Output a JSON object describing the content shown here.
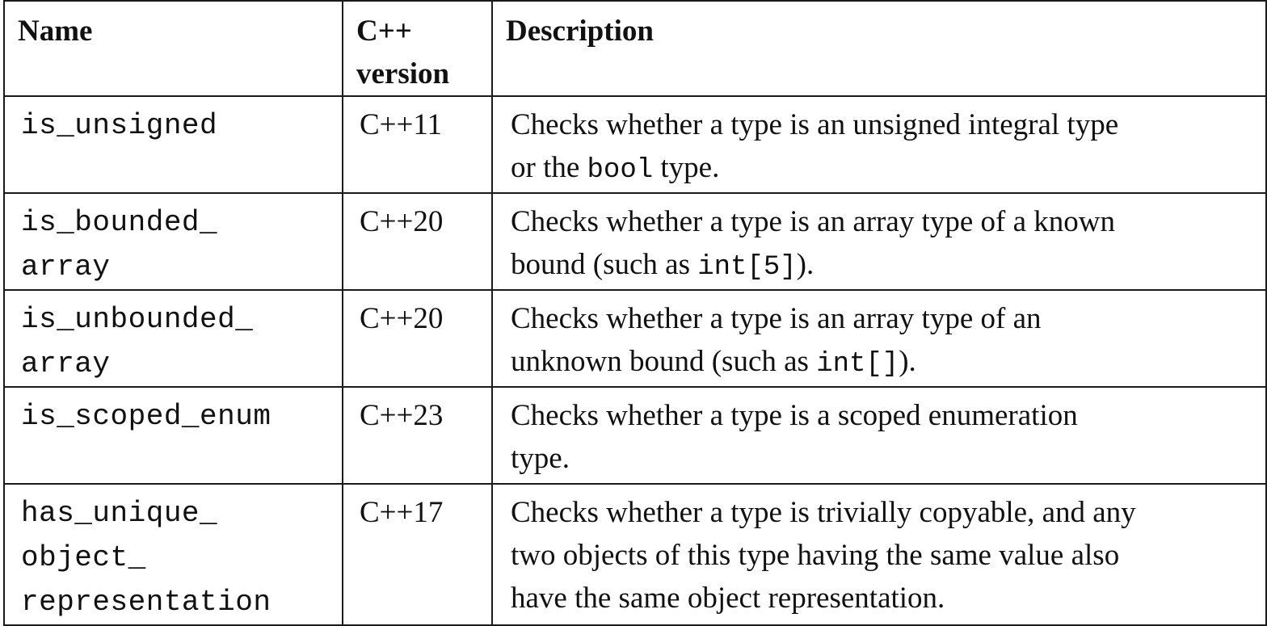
{
  "table": {
    "headers": {
      "name": "Name",
      "version": "C++\nversion",
      "description": "Description"
    },
    "rows": [
      {
        "name": "is_unsigned",
        "version": "C++11",
        "desc_before": "Checks whether a type is an unsigned integral type\nor the ",
        "desc_code": "bool",
        "desc_after": " type."
      },
      {
        "name": "is_bounded_\narray",
        "version": "C++20",
        "desc_before": "Checks whether a type is an array type of a known\nbound (such as ",
        "desc_code": "int[5]",
        "desc_after": ")."
      },
      {
        "name": "is_unbounded_\narray",
        "version": "C++20",
        "desc_before": "Checks whether a type is an array type of an\nunknown bound (such as ",
        "desc_code": "int[]",
        "desc_after": ")."
      },
      {
        "name": "is_scoped_enum",
        "version": "C++23",
        "desc_before": "Checks whether a type is a scoped enumeration\ntype.",
        "desc_code": "",
        "desc_after": ""
      },
      {
        "name": "has_unique_\nobject_\nrepresentation",
        "version": "C++17",
        "desc_before": "Checks whether a type is trivially copyable, and any\ntwo objects of this type having the same value also\nhave the same object representation.",
        "desc_code": "",
        "desc_after": ""
      }
    ]
  }
}
